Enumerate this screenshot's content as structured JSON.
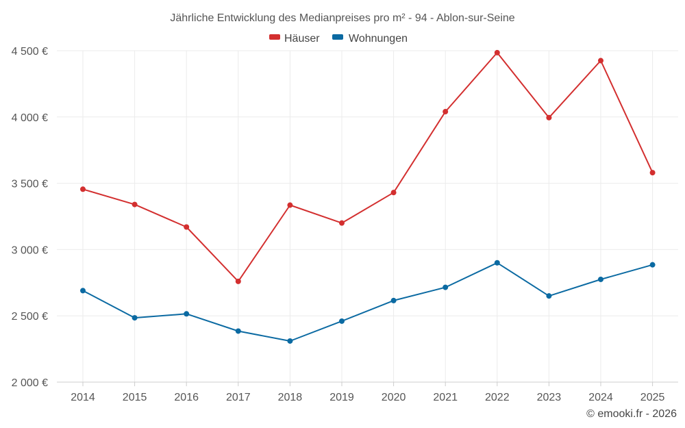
{
  "chart_data": {
    "type": "line",
    "title": "Jährliche Entwicklung des Medianpreises pro m² - 94 - Ablon-sur-Seine",
    "categories": [
      "2014",
      "2015",
      "2016",
      "2017",
      "2018",
      "2019",
      "2020",
      "2021",
      "2022",
      "2023",
      "2024",
      "2025"
    ],
    "series": [
      {
        "name": "Häuser",
        "color": "#d32f2f",
        "values": [
          3455,
          3340,
          3170,
          2760,
          3335,
          3200,
          3430,
          4040,
          4485,
          3995,
          4425,
          3580
        ]
      },
      {
        "name": "Wohnungen",
        "color": "#0b6aa2",
        "values": [
          2690,
          2485,
          2515,
          2385,
          2310,
          2460,
          2615,
          2715,
          2900,
          2650,
          2775,
          2885
        ]
      }
    ],
    "ylim": [
      2000,
      4500
    ],
    "yticks": [
      2000,
      2500,
      3000,
      3500,
      4000,
      4500
    ],
    "ytick_labels": [
      "2 000 €",
      "2 500 €",
      "3 000 €",
      "3 500 €",
      "4 000 €",
      "4 500 €"
    ],
    "xlabel": "",
    "ylabel": "",
    "legend": "top-center",
    "grid": true
  },
  "credit": "© emooki.fr - 2026"
}
